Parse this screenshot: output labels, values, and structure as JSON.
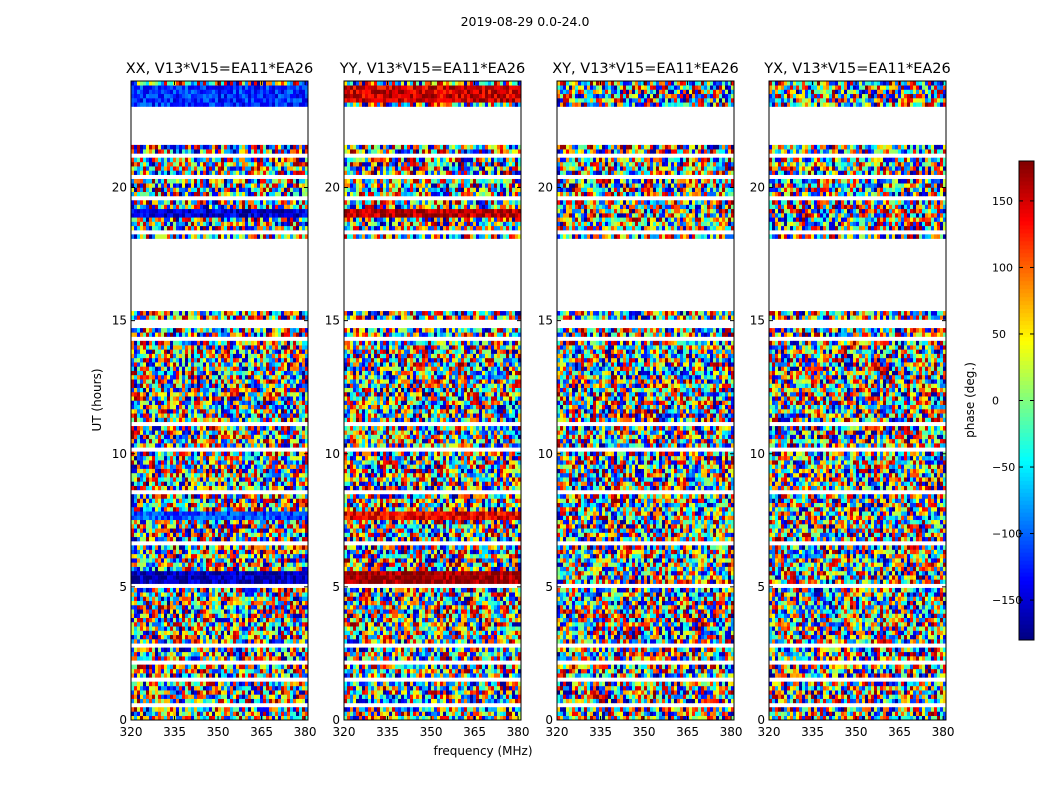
{
  "figure_title": "2019-08-29 0.0-24.0",
  "chart_data": {
    "type": "heatmap",
    "panels": [
      {
        "title": "XX, V13*V15=EA11*EA26",
        "features": [
          {
            "t0": 22.9,
            "t1": 23.9,
            "phase": -120
          },
          {
            "t0": 18.9,
            "t1": 19.2,
            "phase": -150
          },
          {
            "t0": 5.2,
            "t1": 5.6,
            "phase": -160
          },
          {
            "t0": 7.6,
            "t1": 7.9,
            "phase": -110
          }
        ]
      },
      {
        "title": "YY, V13*V15=EA11*EA26",
        "features": [
          {
            "t0": 23.2,
            "t1": 23.9,
            "phase": 150
          },
          {
            "t0": 18.9,
            "t1": 19.2,
            "phase": 160
          },
          {
            "t0": 5.2,
            "t1": 5.6,
            "phase": 170
          },
          {
            "t0": 7.6,
            "t1": 7.9,
            "phase": 140
          }
        ]
      },
      {
        "title": "XY, V13*V15=EA11*EA26",
        "features": []
      },
      {
        "title": "YX, V13*V15=EA11*EA26",
        "features": []
      }
    ],
    "xlabel": "frequency (MHz)",
    "ylabel": "UT (hours)",
    "xlim": [
      320,
      381
    ],
    "ylim": [
      0,
      24
    ],
    "xticks": [
      320,
      335,
      350,
      365,
      380
    ],
    "yticks": [
      0,
      5,
      10,
      15,
      20
    ],
    "colorbar": {
      "label": "phase (deg.)",
      "range": [
        -180,
        180
      ],
      "ticks": [
        -150,
        -100,
        -50,
        0,
        50,
        100,
        150
      ]
    },
    "flagged_ut_ranges": [
      [
        0.25,
        0.3
      ],
      [
        0.45,
        0.6
      ],
      [
        1.45,
        1.55
      ],
      [
        2.15,
        2.25
      ],
      [
        2.8,
        2.85
      ],
      [
        4.5,
        4.55
      ],
      [
        5.0,
        5.05
      ],
      [
        6.6,
        6.7
      ],
      [
        8.25,
        8.3
      ],
      [
        8.55,
        8.7
      ],
      [
        9.85,
        9.95
      ],
      [
        10.1,
        10.2
      ],
      [
        11.1,
        11.15
      ],
      [
        12.6,
        12.65
      ],
      [
        14.3,
        14.35
      ],
      [
        14.5,
        14.55
      ],
      [
        14.8,
        15.0
      ],
      [
        15.4,
        18.1
      ],
      [
        18.2,
        18.4
      ],
      [
        19.6,
        19.7
      ],
      [
        20.4,
        20.5
      ],
      [
        21.2,
        21.3
      ],
      [
        21.4,
        21.5
      ],
      [
        21.6,
        23.0
      ],
      [
        23.2,
        23.25
      ]
    ]
  }
}
